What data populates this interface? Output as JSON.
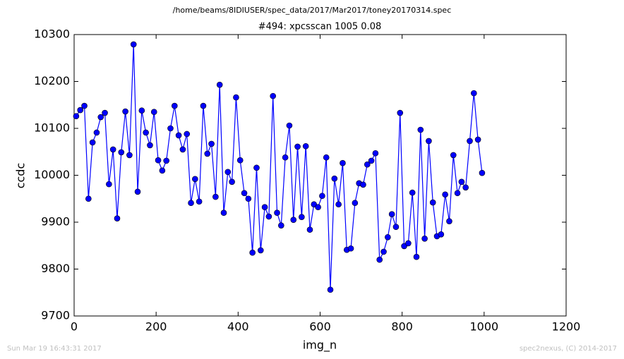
{
  "chart_data": {
    "type": "line",
    "file": "/home/beams/8IDIUSER/spec_data/2017/Mar2017/toney20170314.spec",
    "title": "#494: xpcsscan 1005 0.08",
    "xlabel": "img_n",
    "ylabel": "ccdc",
    "footer_left": "Sun Mar 19 16:43:31 2017",
    "footer_right": "spec2nexus, (C) 2014-2017",
    "xlim": [
      0,
      1200
    ],
    "xticks": [
      0,
      200,
      400,
      600,
      800,
      1000,
      1200
    ],
    "ylim": [
      9700,
      10300
    ],
    "yticks": [
      9700,
      9800,
      9900,
      10000,
      10100,
      10200,
      10300
    ],
    "x": [
      5,
      15,
      25,
      35,
      45,
      55,
      65,
      75,
      85,
      95,
      105,
      115,
      125,
      135,
      145,
      155,
      165,
      175,
      185,
      195,
      205,
      215,
      225,
      235,
      245,
      255,
      265,
      275,
      285,
      295,
      305,
      315,
      325,
      335,
      345,
      355,
      365,
      375,
      385,
      395,
      405,
      415,
      425,
      435,
      445,
      455,
      465,
      475,
      485,
      495,
      505,
      515,
      525,
      535,
      545,
      555,
      565,
      575,
      585,
      595,
      605,
      615,
      625,
      635,
      645,
      655,
      665,
      675,
      685,
      695,
      705,
      715,
      725,
      735,
      745,
      755,
      765,
      775,
      785,
      795,
      805,
      815,
      825,
      835,
      845,
      855,
      865,
      875,
      885,
      895,
      905,
      915,
      925,
      935,
      945,
      955,
      965,
      975,
      985,
      995
    ],
    "series": [
      {
        "name": "ccdc",
        "color": "#0000ff",
        "values": [
          10126,
          10139,
          10148,
          9950,
          10070,
          10091,
          10124,
          10133,
          9981,
          10055,
          9908,
          10049,
          10136,
          10043,
          10279,
          9965,
          10138,
          10091,
          10064,
          10135,
          10032,
          10010,
          10031,
          10100,
          10148,
          10085,
          10055,
          10088,
          9941,
          9992,
          9944,
          10148,
          10046,
          10067,
          9954,
          10193,
          9920,
          10007,
          9986,
          10166,
          10032,
          9962,
          9950,
          9835,
          10016,
          9840,
          9932,
          9912,
          10169,
          9920,
          9893,
          10038,
          10106,
          9905,
          10061,
          9911,
          10062,
          9884,
          9938,
          9932,
          9956,
          10038,
          9756,
          9993,
          9938,
          10026,
          9841,
          9844,
          9941,
          9983,
          9980,
          10023,
          10031,
          10047,
          9820,
          9837,
          9868,
          9917,
          9890,
          10133,
          9849,
          9855,
          9963,
          9826,
          10097,
          9865,
          10073,
          9942,
          9870,
          9874,
          9959,
          9902,
          10043,
          9962,
          9986,
          9974,
          10073,
          10175,
          10076,
          10005
        ]
      }
    ]
  }
}
